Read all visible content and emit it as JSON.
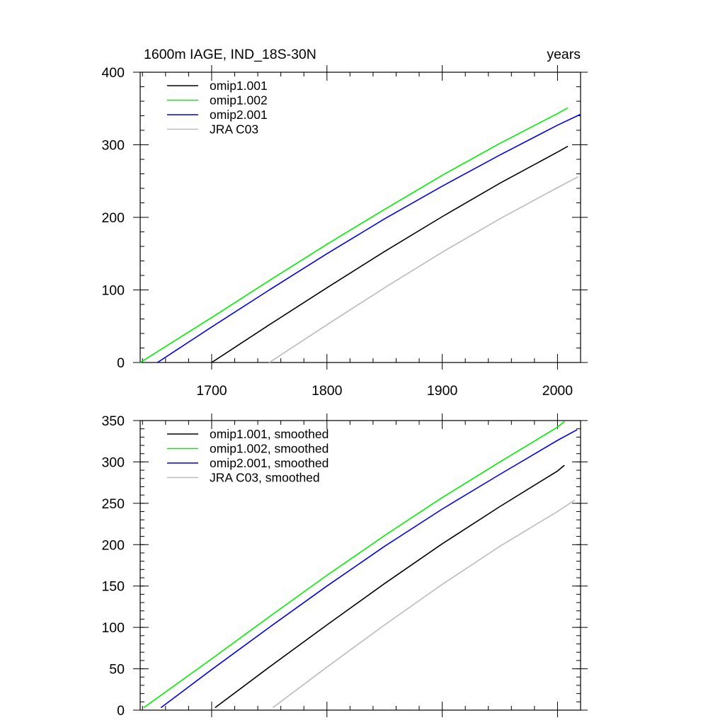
{
  "chart_data": [
    {
      "type": "line",
      "title": "1600m IAGE, IND_18S-30N",
      "units": "years",
      "xlim": [
        1638,
        2020
      ],
      "ylim": [
        0,
        400
      ],
      "xticks": [
        1700,
        1800,
        1900,
        2000
      ],
      "yticks": [
        0,
        100,
        200,
        300,
        400
      ],
      "legend_position": "top-left",
      "series": [
        {
          "name": "omip1.001",
          "color": "#000000",
          "x": [
            1700,
            1750,
            1800,
            1850,
            1900,
            1950,
            2000,
            2009
          ],
          "y": [
            0,
            52,
            103,
            153,
            201,
            247,
            290,
            298
          ]
        },
        {
          "name": "omip1.002",
          "color": "#00ee00",
          "x": [
            1638,
            1700,
            1750,
            1800,
            1850,
            1900,
            1950,
            2000,
            2009
          ],
          "y": [
            0,
            62,
            113,
            163,
            211,
            258,
            302,
            343,
            351
          ]
        },
        {
          "name": "omip2.001",
          "color": "#0000ee",
          "x": [
            1653,
            1700,
            1750,
            1800,
            1850,
            1900,
            1950,
            2000,
            2020
          ],
          "y": [
            0,
            49,
            100,
            150,
            198,
            243,
            286,
            327,
            342
          ]
        },
        {
          "name": "JRA C03",
          "color": "#bbbbbb",
          "x": [
            1750,
            1800,
            1850,
            1900,
            1950,
            2000,
            2018
          ],
          "y": [
            0,
            52,
            103,
            152,
            198,
            241,
            256
          ]
        }
      ]
    },
    {
      "type": "line",
      "xlim": [
        1638,
        2020
      ],
      "ylim": [
        0,
        350
      ],
      "xticks": [
        1700,
        1800,
        1900,
        2000
      ],
      "yticks": [
        0,
        50,
        100,
        150,
        200,
        250,
        300,
        350
      ],
      "legend_position": "top-left",
      "series": [
        {
          "name": "omip1.001, smoothed",
          "color": "#000000",
          "x": [
            1703,
            1750,
            1800,
            1850,
            1900,
            1950,
            2000,
            2006
          ],
          "y": [
            3,
            52,
            103,
            153,
            201,
            246,
            289,
            296
          ]
        },
        {
          "name": "omip1.002, smoothed",
          "color": "#00ee00",
          "x": [
            1641,
            1700,
            1750,
            1800,
            1850,
            1900,
            1950,
            2000,
            2006
          ],
          "y": [
            3,
            62,
            113,
            163,
            211,
            257,
            300,
            342,
            349
          ]
        },
        {
          "name": "omip2.001, smoothed",
          "color": "#0000ee",
          "x": [
            1656,
            1700,
            1750,
            1800,
            1850,
            1900,
            1950,
            2000,
            2017
          ],
          "y": [
            3,
            49,
            100,
            150,
            198,
            243,
            285,
            326,
            339
          ]
        },
        {
          "name": "JRA C03, smoothed",
          "color": "#bbbbbb",
          "x": [
            1753,
            1800,
            1850,
            1900,
            1950,
            2000,
            2015
          ],
          "y": [
            3,
            52,
            103,
            152,
            198,
            240,
            254
          ]
        }
      ]
    }
  ]
}
